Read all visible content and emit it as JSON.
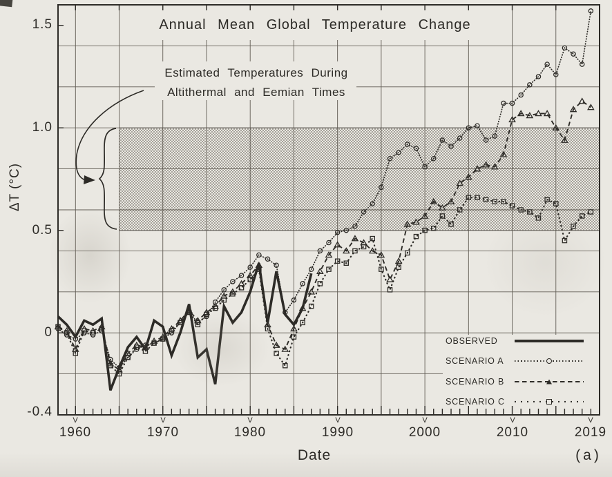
{
  "figure": {
    "panel_label": "(a)"
  },
  "title": "Annual Mean Global Temperature Change",
  "annotation": {
    "line1": "Estimated Temperatures During",
    "line2": "Altithermal and Eemian Times"
  },
  "axes": {
    "y_label": "ΔT (°C)",
    "x_label": "Date",
    "y_ticks": [
      {
        "value": 1.5,
        "label": "1.5"
      },
      {
        "value": 1.0,
        "label": "1.0"
      },
      {
        "value": 0.5,
        "label": "0.5"
      },
      {
        "value": 0.0,
        "label": "0"
      },
      {
        "value": -0.4,
        "label": "-0.4"
      }
    ],
    "x_ticks": [
      {
        "year": 1960,
        "marker": "V",
        "label": "1960"
      },
      {
        "year": 1970,
        "marker": "V",
        "label": "1970"
      },
      {
        "year": 1980,
        "marker": "V",
        "label": "1980"
      },
      {
        "year": 1990,
        "marker": "V",
        "label": "1990"
      },
      {
        "year": 2000,
        "marker": "V",
        "label": "2000"
      },
      {
        "year": 2010,
        "marker": "V",
        "label": "2010"
      },
      {
        "year": 2019,
        "marker": "V",
        "label": "2019"
      }
    ]
  },
  "legend": {
    "items": [
      {
        "label": "OBSERVED",
        "style": "solid-thick",
        "marker": "none"
      },
      {
        "label": "SCENARIO A",
        "style": "dotted-fine",
        "marker": "circle"
      },
      {
        "label": "SCENARIO B",
        "style": "dashed",
        "marker": "triangle"
      },
      {
        "label": "SCENARIO C",
        "style": "dotted-sparse",
        "marker": "square"
      }
    ]
  },
  "colors": {
    "paper": "#eae8e2",
    "ink": "#2d2b27",
    "grid": "#615c54",
    "stipple_dot": "#6e6960"
  },
  "chart_data": {
    "type": "line",
    "title": "Annual Mean Global Temperature Change",
    "xlabel": "Date",
    "ylabel": "ΔT (°C)",
    "xlim": [
      1958,
      2020
    ],
    "ylim": [
      -0.4,
      1.6
    ],
    "grid": {
      "x_interval_years": 5,
      "y_interval": 0.2,
      "on": true
    },
    "band": {
      "label": "Estimated Temperatures During Altithermal and Eemian Times",
      "y_from": 0.5,
      "y_to": 1.0,
      "x_start_year": 1965,
      "pattern": "stippled"
    },
    "series": [
      {
        "name": "OBSERVED",
        "style": "solid-thick",
        "marker": "none",
        "start_year": 1958,
        "end_year": 1987,
        "values": [
          0.08,
          0.04,
          -0.02,
          0.06,
          0.04,
          0.07,
          -0.28,
          -0.17,
          -0.07,
          -0.02,
          -0.08,
          0.06,
          0.03,
          -0.11,
          0.0,
          0.14,
          -0.12,
          -0.08,
          -0.25,
          0.13,
          0.05,
          0.1,
          0.2,
          0.34,
          0.05,
          0.3,
          0.09,
          0.04,
          0.12,
          0.29
        ]
      },
      {
        "name": "SCENARIO A",
        "style": "dotted-fine",
        "marker": "circle",
        "start_year": 1958,
        "end_year": 2019,
        "values": [
          0.02,
          -0.01,
          -0.03,
          0.0,
          -0.01,
          0.01,
          -0.13,
          -0.17,
          -0.12,
          -0.08,
          -0.06,
          -0.05,
          -0.03,
          0.0,
          0.05,
          0.1,
          0.05,
          0.08,
          0.15,
          0.21,
          0.25,
          0.28,
          0.32,
          0.38,
          0.36,
          0.33,
          0.1,
          0.16,
          0.24,
          0.31,
          0.4,
          0.44,
          0.49,
          0.5,
          0.52,
          0.59,
          0.63,
          0.71,
          0.85,
          0.88,
          0.92,
          0.9,
          0.81,
          0.85,
          0.94,
          0.91,
          0.95,
          1.0,
          1.01,
          0.94,
          0.96,
          1.12,
          1.12,
          1.16,
          1.21,
          1.25,
          1.31,
          1.26,
          1.39,
          1.36,
          1.31,
          1.57
        ]
      },
      {
        "name": "SCENARIO B",
        "style": "dashed",
        "marker": "triangle",
        "start_year": 1958,
        "end_year": 2019,
        "values": [
          0.03,
          0.01,
          -0.08,
          0.02,
          0.01,
          0.03,
          -0.15,
          -0.18,
          -0.1,
          -0.06,
          -0.07,
          -0.04,
          -0.02,
          0.02,
          0.06,
          0.11,
          0.06,
          0.1,
          0.13,
          0.18,
          0.2,
          0.24,
          0.28,
          0.33,
          0.04,
          -0.06,
          -0.08,
          0.02,
          0.12,
          0.2,
          0.3,
          0.38,
          0.43,
          0.4,
          0.46,
          0.44,
          0.4,
          0.38,
          0.26,
          0.35,
          0.53,
          0.54,
          0.57,
          0.64,
          0.61,
          0.64,
          0.73,
          0.76,
          0.8,
          0.82,
          0.81,
          0.87,
          1.04,
          1.07,
          1.06,
          1.07,
          1.07,
          1.0,
          0.94,
          1.09,
          1.13,
          1.1
        ]
      },
      {
        "name": "SCENARIO C",
        "style": "dotted-sparse",
        "marker": "square",
        "start_year": 1958,
        "end_year": 2019,
        "values": [
          0.03,
          0.0,
          -0.1,
          0.01,
          0.0,
          0.02,
          -0.16,
          -0.2,
          -0.12,
          -0.07,
          -0.09,
          -0.05,
          -0.03,
          0.01,
          0.05,
          0.1,
          0.04,
          0.09,
          0.12,
          0.16,
          0.19,
          0.22,
          0.26,
          0.31,
          0.02,
          -0.1,
          -0.16,
          -0.02,
          0.05,
          0.13,
          0.24,
          0.31,
          0.35,
          0.34,
          0.4,
          0.42,
          0.46,
          0.31,
          0.21,
          0.32,
          0.39,
          0.47,
          0.5,
          0.51,
          0.57,
          0.53,
          0.6,
          0.66,
          0.66,
          0.65,
          0.64,
          0.64,
          0.62,
          0.6,
          0.59,
          0.56,
          0.65,
          0.63,
          0.45,
          0.52,
          0.57,
          0.59
        ]
      }
    ]
  }
}
